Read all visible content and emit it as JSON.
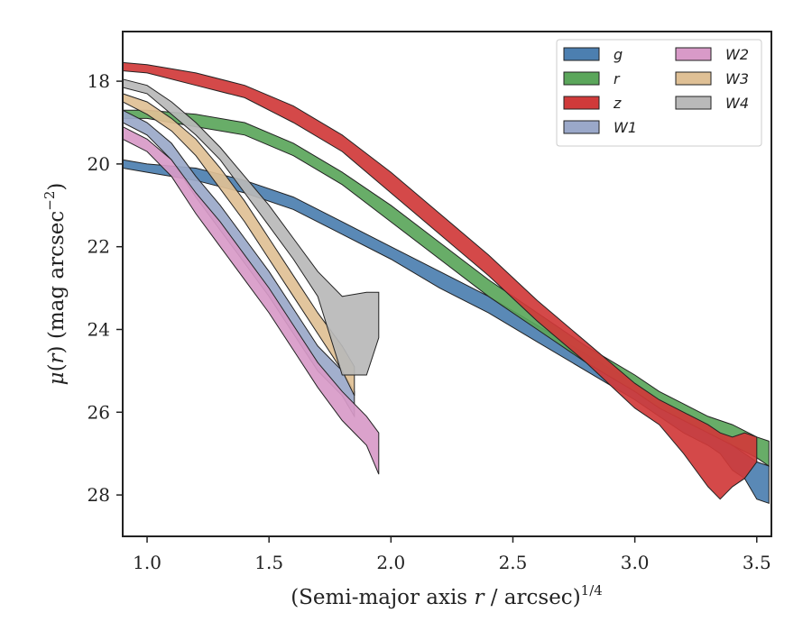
{
  "chart_data": {
    "type": "area",
    "subtype": "band",
    "xlim": [
      0.9,
      3.56
    ],
    "ylim": [
      29.0,
      16.8
    ],
    "y_inverted": true,
    "x_ticks": [
      1.0,
      1.5,
      2.0,
      2.5,
      3.0,
      3.5
    ],
    "x_tick_labels": [
      "1.0",
      "1.5",
      "2.0",
      "2.5",
      "3.0",
      "3.5"
    ],
    "y_ticks": [
      18,
      20,
      22,
      24,
      26,
      28
    ],
    "y_tick_labels": [
      "18",
      "20",
      "22",
      "24",
      "26",
      "28"
    ],
    "xlabel": {
      "main": "(Semi-major axis ",
      "var": "r",
      "mid": " / arcsec)",
      "sup": "1/4"
    },
    "ylabel": {
      "mu": "μ",
      "open": "(",
      "var": "r",
      "close": ")",
      "main": " (mag arcsec",
      "sup": "−2",
      "end": ")"
    },
    "legend_position": "top-right",
    "legend_columns": 2,
    "grid": false,
    "series": [
      {
        "name": "g",
        "color": "#4c7fb0",
        "x": [
          0.9,
          1.0,
          1.2,
          1.4,
          1.6,
          1.8,
          2.0,
          2.2,
          2.4,
          2.6,
          2.8,
          3.0,
          3.1,
          3.2,
          3.3,
          3.35,
          3.4,
          3.45,
          3.5,
          3.55
        ],
        "lower": [
          19.9,
          20.0,
          20.1,
          20.4,
          20.8,
          21.4,
          22.0,
          22.6,
          23.2,
          23.9,
          24.6,
          25.3,
          25.7,
          26.0,
          26.3,
          26.5,
          26.8,
          27.0,
          27.2,
          27.3
        ],
        "upper": [
          20.1,
          20.2,
          20.4,
          20.7,
          21.1,
          21.7,
          22.3,
          23.0,
          23.6,
          24.3,
          25.0,
          25.7,
          26.1,
          26.5,
          26.8,
          27.0,
          27.4,
          27.6,
          28.1,
          28.2
        ]
      },
      {
        "name": "r",
        "color": "#5ba65b",
        "x": [
          0.9,
          1.0,
          1.2,
          1.4,
          1.6,
          1.8,
          2.0,
          2.2,
          2.4,
          2.6,
          2.8,
          3.0,
          3.1,
          3.2,
          3.3,
          3.4,
          3.5,
          3.55
        ],
        "lower": [
          18.7,
          18.7,
          18.8,
          19.0,
          19.5,
          20.2,
          21.0,
          21.9,
          22.8,
          23.6,
          24.4,
          25.1,
          25.5,
          25.8,
          26.1,
          26.3,
          26.6,
          26.7
        ],
        "upper": [
          18.9,
          18.9,
          19.1,
          19.3,
          19.8,
          20.5,
          21.4,
          22.3,
          23.2,
          24.0,
          24.8,
          25.5,
          25.9,
          26.2,
          26.5,
          26.8,
          27.1,
          27.3
        ]
      },
      {
        "name": "z",
        "color": "#d03a3a",
        "x": [
          0.9,
          1.0,
          1.2,
          1.4,
          1.6,
          1.8,
          2.0,
          2.2,
          2.4,
          2.6,
          2.8,
          3.0,
          3.1,
          3.2,
          3.3,
          3.35,
          3.4,
          3.45,
          3.5
        ],
        "lower": [
          17.55,
          17.6,
          17.8,
          18.1,
          18.6,
          19.3,
          20.2,
          21.2,
          22.2,
          23.3,
          24.3,
          25.3,
          25.7,
          26.0,
          26.3,
          26.5,
          26.6,
          26.5,
          26.6
        ],
        "upper": [
          17.75,
          17.8,
          18.1,
          18.4,
          19.0,
          19.7,
          20.7,
          21.7,
          22.7,
          23.8,
          24.8,
          25.9,
          26.3,
          27.0,
          27.8,
          28.1,
          27.8,
          27.6,
          27.2
        ]
      },
      {
        "name": "W1",
        "color": "#9aa8c9",
        "x": [
          0.9,
          1.0,
          1.1,
          1.2,
          1.3,
          1.4,
          1.5,
          1.6,
          1.7,
          1.8,
          1.85
        ],
        "lower": [
          18.7,
          19.0,
          19.5,
          20.3,
          21.0,
          21.8,
          22.6,
          23.5,
          24.4,
          25.0,
          25.5
        ],
        "upper": [
          19.0,
          19.3,
          19.9,
          20.8,
          21.6,
          22.4,
          23.2,
          24.1,
          25.0,
          25.6,
          26.1
        ]
      },
      {
        "name": "W2",
        "color": "#d89ac8",
        "x": [
          0.9,
          1.0,
          1.1,
          1.2,
          1.3,
          1.4,
          1.5,
          1.6,
          1.7,
          1.8,
          1.9,
          1.95
        ],
        "lower": [
          19.1,
          19.4,
          19.9,
          20.7,
          21.4,
          22.2,
          23.0,
          23.9,
          24.8,
          25.5,
          26.1,
          26.5
        ],
        "upper": [
          19.4,
          19.7,
          20.3,
          21.2,
          22.0,
          22.8,
          23.6,
          24.5,
          25.4,
          26.2,
          26.8,
          27.5
        ]
      },
      {
        "name": "W3",
        "color": "#dfc095",
        "x": [
          0.9,
          1.0,
          1.1,
          1.2,
          1.3,
          1.4,
          1.5,
          1.6,
          1.7,
          1.8,
          1.85
        ],
        "lower": [
          18.3,
          18.5,
          18.9,
          19.4,
          20.1,
          20.9,
          21.8,
          22.7,
          23.6,
          24.4,
          24.9
        ],
        "upper": [
          18.5,
          18.8,
          19.2,
          19.8,
          20.6,
          21.4,
          22.3,
          23.2,
          24.1,
          25.0,
          25.6
        ]
      },
      {
        "name": "W4",
        "color": "#b9b9b9",
        "x": [
          0.9,
          1.0,
          1.1,
          1.2,
          1.3,
          1.4,
          1.5,
          1.6,
          1.7,
          1.8,
          1.9,
          1.95
        ],
        "lower": [
          17.95,
          18.1,
          18.5,
          19.0,
          19.6,
          20.3,
          21.0,
          21.8,
          22.6,
          23.2,
          23.1,
          23.1
        ],
        "upper": [
          18.15,
          18.3,
          18.8,
          19.3,
          19.9,
          20.7,
          21.5,
          22.3,
          23.2,
          25.1,
          25.1,
          24.2
        ]
      }
    ]
  }
}
